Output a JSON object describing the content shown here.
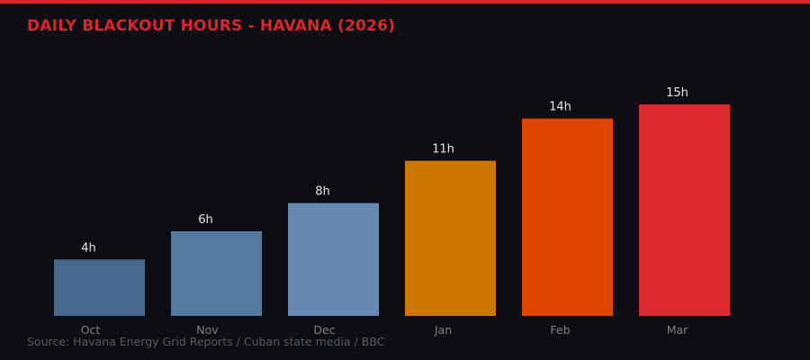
{
  "chart_data": {
    "type": "bar",
    "title": "DAILY BLACKOUT HOURS - HAVANA (2026)",
    "categories": [
      "Oct",
      "Nov",
      "Dec",
      "Jan",
      "Feb",
      "Mar"
    ],
    "values": [
      4,
      6,
      8,
      11,
      14,
      15
    ],
    "data_labels": [
      "4h",
      "6h",
      "8h",
      "11h",
      "14h",
      "15h"
    ],
    "colors": [
      "#466a8f",
      "#557aa0",
      "#6589b0",
      "#cc7700",
      "#dd4400",
      "#dd2a2e"
    ],
    "ylim": [
      0,
      15
    ],
    "grid": false,
    "xlabel": "",
    "ylabel": "",
    "source": "Source: Havana Energy Grid Reports / Cuban state media / BBC"
  },
  "colors": {
    "background": "#0d0e13",
    "accent": "#d9272b"
  }
}
